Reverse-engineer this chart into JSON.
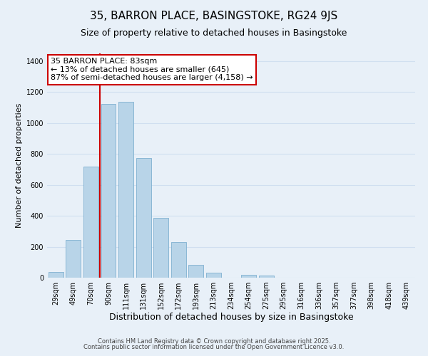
{
  "title": "35, BARRON PLACE, BASINGSTOKE, RG24 9JS",
  "subtitle": "Size of property relative to detached houses in Basingstoke",
  "bar_labels": [
    "29sqm",
    "49sqm",
    "70sqm",
    "90sqm",
    "111sqm",
    "131sqm",
    "152sqm",
    "172sqm",
    "193sqm",
    "213sqm",
    "234sqm",
    "254sqm",
    "275sqm",
    "295sqm",
    "316sqm",
    "336sqm",
    "357sqm",
    "377sqm",
    "398sqm",
    "418sqm",
    "439sqm"
  ],
  "bar_values": [
    35,
    245,
    720,
    1125,
    1135,
    775,
    385,
    230,
    85,
    30,
    0,
    20,
    15,
    0,
    0,
    0,
    0,
    0,
    0,
    0,
    0
  ],
  "bar_color": "#b8d4e8",
  "bar_edge_color": "#7fb0d0",
  "grid_color": "#d0dff0",
  "background_color": "#e8f0f8",
  "vline_color": "#cc0000",
  "vline_x_index": 3,
  "xlabel": "Distribution of detached houses by size in Basingstoke",
  "ylabel": "Number of detached properties",
  "ylim": [
    0,
    1450
  ],
  "yticks": [
    0,
    200,
    400,
    600,
    800,
    1000,
    1200,
    1400
  ],
  "annotation_title": "35 BARRON PLACE: 83sqm",
  "annotation_line1": "← 13% of detached houses are smaller (645)",
  "annotation_line2": "87% of semi-detached houses are larger (4,158) →",
  "annotation_box_color": "#ffffff",
  "annotation_box_edge": "#cc0000",
  "footer_line1": "Contains HM Land Registry data © Crown copyright and database right 2025.",
  "footer_line2": "Contains public sector information licensed under the Open Government Licence v3.0.",
  "title_fontsize": 11,
  "subtitle_fontsize": 9,
  "xlabel_fontsize": 9,
  "ylabel_fontsize": 8,
  "tick_fontsize": 7,
  "annotation_fontsize": 8,
  "footer_fontsize": 6
}
